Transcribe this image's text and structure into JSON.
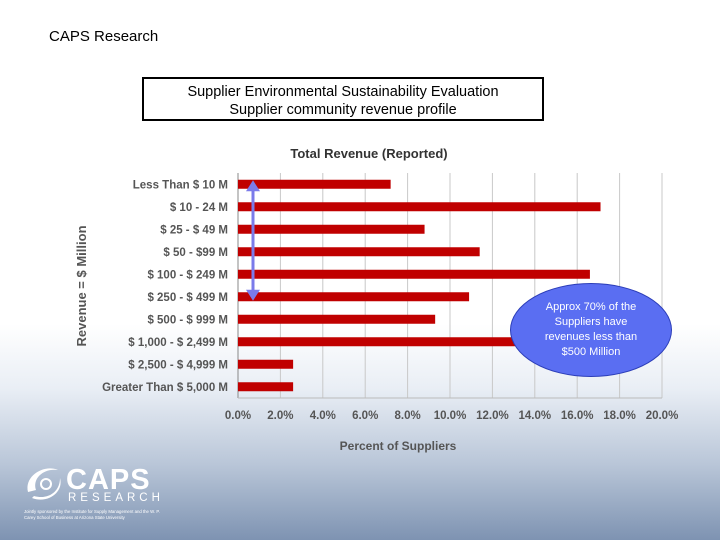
{
  "header": {
    "org_name": "CAPS Research"
  },
  "title_box": {
    "line1": "Supplier Environmental Sustainability Evaluation",
    "line2": "Supplier community revenue profile"
  },
  "chart_data": {
    "type": "bar",
    "orientation": "horizontal",
    "title": "Total Revenue (Reported)",
    "xlabel": "Percent of Suppliers",
    "ylabel": "Revenue = $ Million",
    "categories": [
      "Less Than $ 10 M",
      "$ 10 - 24 M",
      "$ 25 - $ 49 M",
      "$ 50 - $99 M",
      "$ 100 - $ 249 M",
      "$ 250 - $ 499 M",
      "$ 500  - $ 999 M",
      "$ 1,000 - $ 2,499 M",
      "$ 2,500 - $ 4,999 M",
      "Greater Than $ 5,000 M"
    ],
    "values": [
      7.2,
      17.1,
      8.8,
      11.4,
      16.6,
      10.9,
      9.3,
      13.1,
      2.6,
      2.6
    ],
    "xlim": [
      0,
      20
    ],
    "xticks": [
      "0.0%",
      "2.0%",
      "4.0%",
      "6.0%",
      "8.0%",
      "10.0%",
      "12.0%",
      "14.0%",
      "16.0%",
      "18.0%",
      "20.0%"
    ],
    "bar_color": "#c00000",
    "grid": true,
    "annotation_arrow": {
      "category_from": "Less Than $ 10 M",
      "category_to": "$ 250 - $ 499 M"
    }
  },
  "callout": {
    "text": "Approx 70% of the Suppliers have revenues less than $500 Million",
    "color": "#5a6ef2"
  },
  "logo": {
    "word": "CAPS",
    "subword": "RESEARCH",
    "tagline": "Jointly sponsored by the Institute for Supply Management and the W. P. Carey School of Business at Arizona State University"
  }
}
